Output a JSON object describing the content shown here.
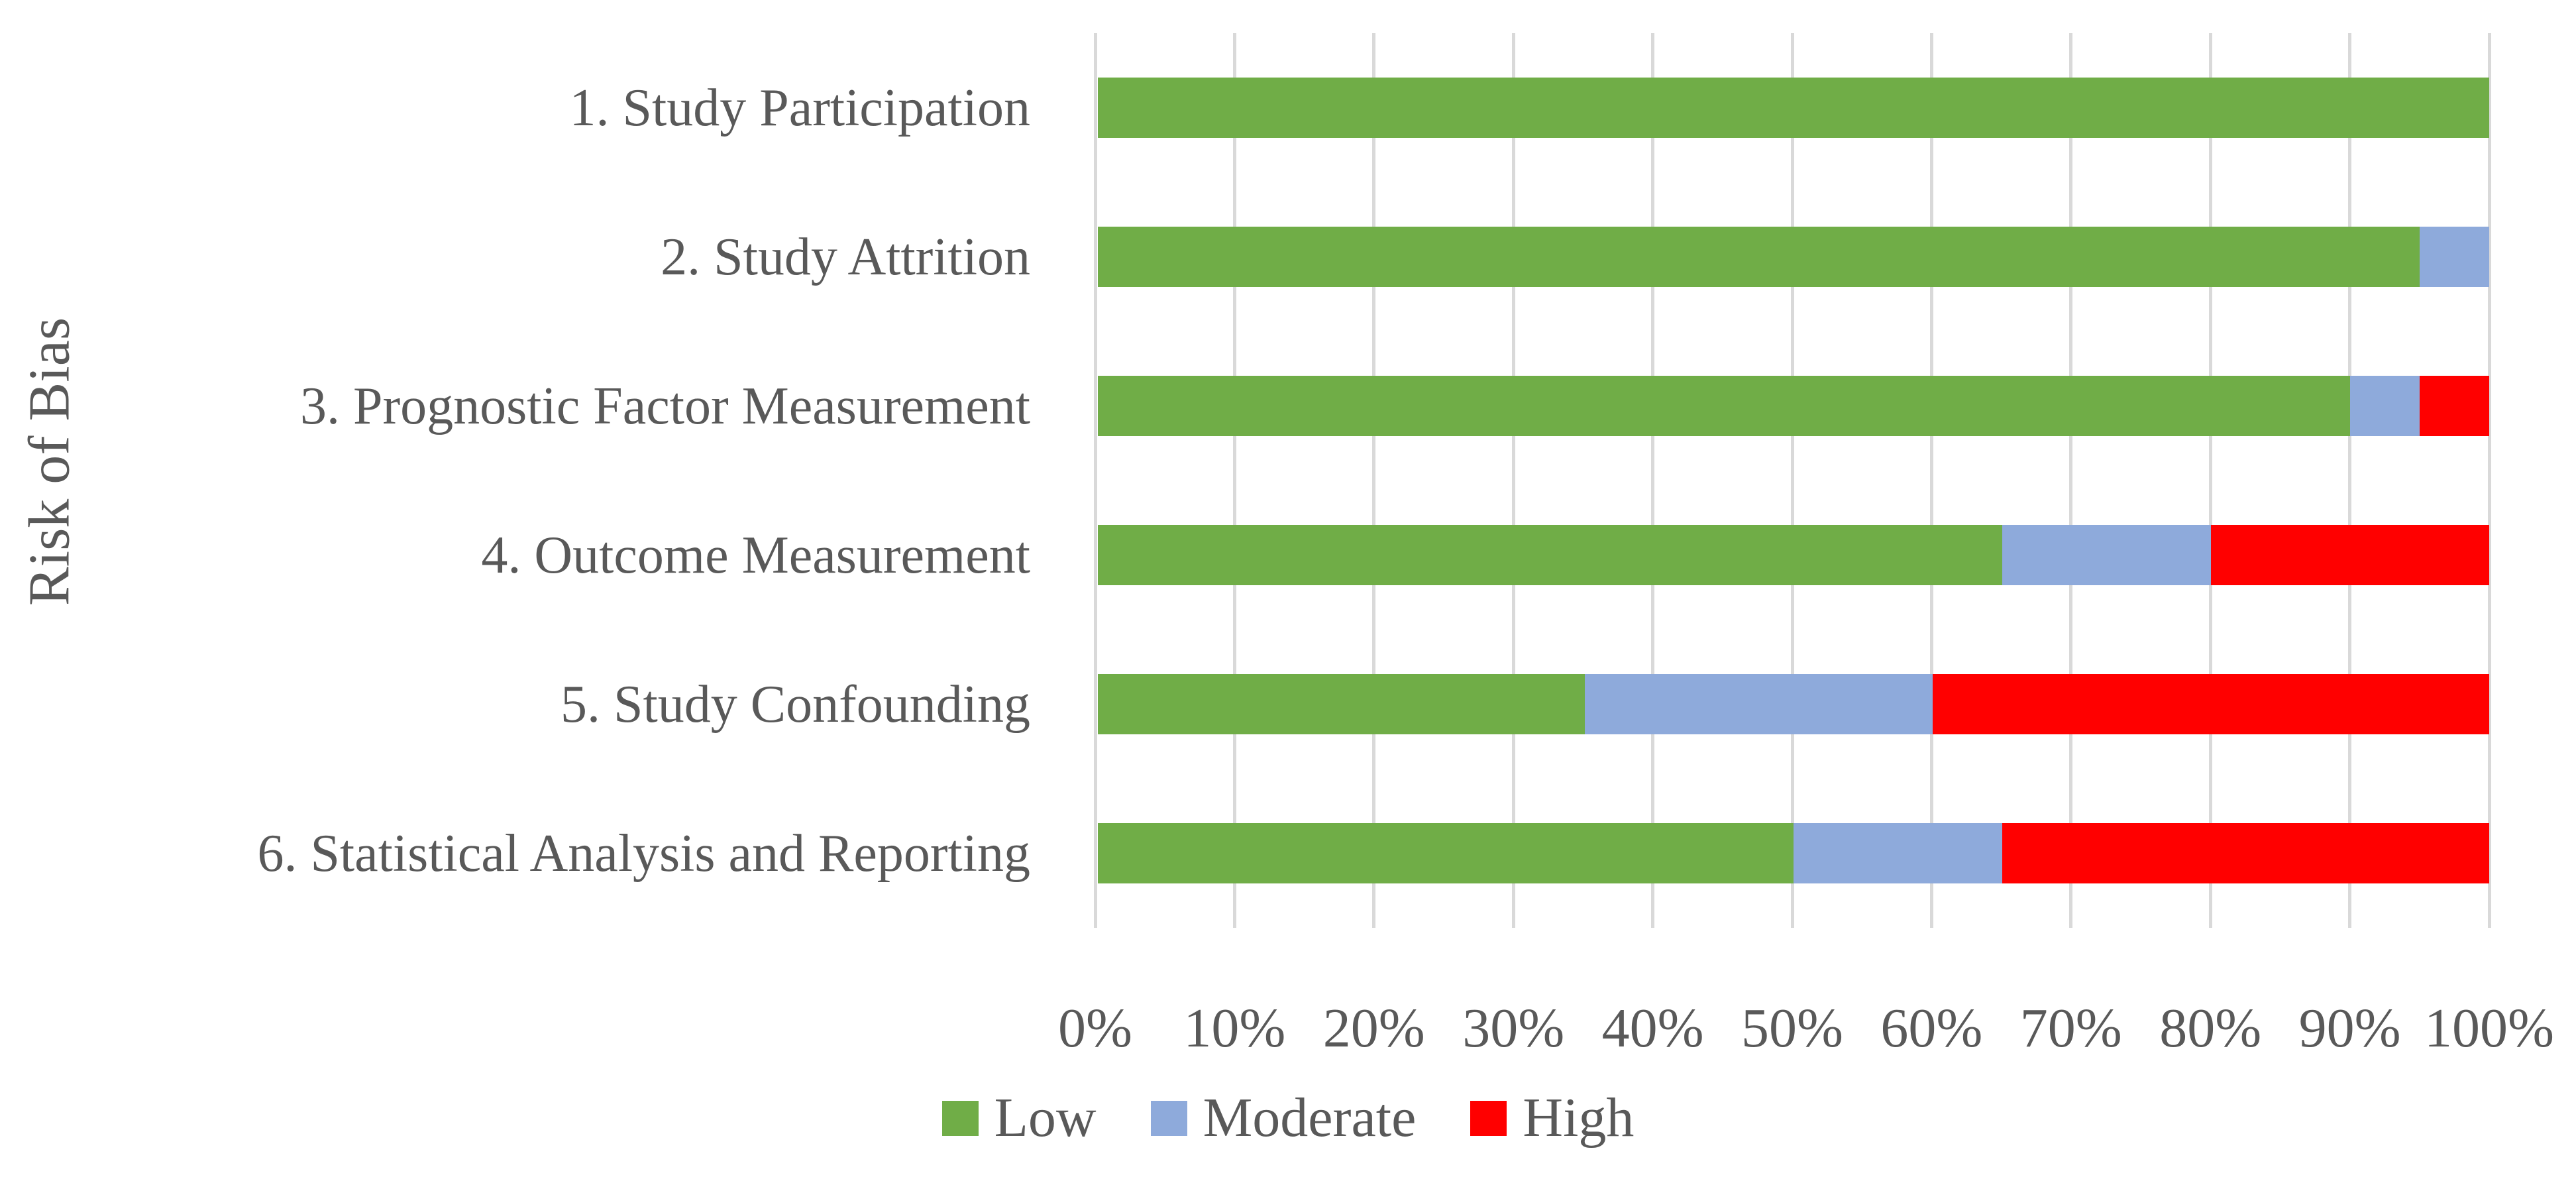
{
  "chart_data": {
    "type": "bar",
    "orientation": "horizontal",
    "stacked": true,
    "title": "",
    "xlabel": "",
    "ylabel": "Risk of Bias",
    "categories": [
      "1. Study Participation",
      "2. Study Attrition",
      "3. Prognostic Factor Measurement",
      "4. Outcome Measurement",
      "5. Study Confounding",
      "6. Statistical Analysis and Reporting"
    ],
    "series": [
      {
        "name": "Low",
        "color": "#70AD47",
        "values": [
          100,
          95,
          90,
          65,
          35,
          50
        ]
      },
      {
        "name": "Moderate",
        "color": "#8EAADB",
        "values": [
          0,
          5,
          5,
          15,
          25,
          15
        ]
      },
      {
        "name": "High",
        "color": "#FF0000",
        "values": [
          0,
          0,
          5,
          20,
          40,
          35
        ]
      }
    ],
    "x_ticks": [
      "0%",
      "10%",
      "20%",
      "30%",
      "40%",
      "50%",
      "60%",
      "70%",
      "80%",
      "90%",
      "100%"
    ],
    "xlim": [
      0,
      100
    ],
    "unit": "percent",
    "grid": true,
    "legend_position": "bottom"
  },
  "legend": {
    "items": [
      {
        "label": "Low",
        "color": "#70AD47"
      },
      {
        "label": "Moderate",
        "color": "#8EAADB"
      },
      {
        "label": "High",
        "color": "#FF0000"
      }
    ]
  },
  "colors": {
    "low": "#70AD47",
    "moderate": "#8EAADB",
    "high": "#FF0000",
    "text": "#595959",
    "gridline": "#D9D9D9",
    "background": "#FFFFFF"
  }
}
